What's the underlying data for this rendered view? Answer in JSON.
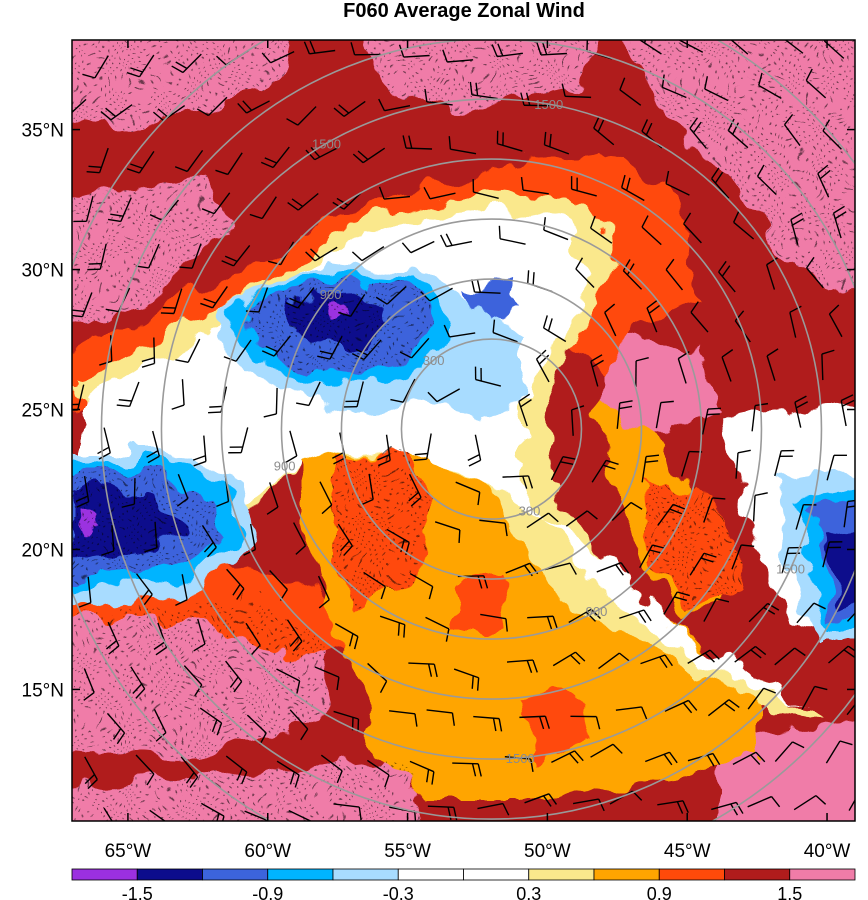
{
  "title": "F060 Average Zonal Wind",
  "map": {
    "lon_range": [
      -67,
      -39
    ],
    "lat_range": [
      10.3,
      38.2
    ],
    "lon_ticks": [
      "65°W",
      "60°W",
      "55°W",
      "50°W",
      "45°W",
      "40°W"
    ],
    "lon_tick_values": [
      -65,
      -60,
      -55,
      -50,
      -45,
      -40
    ],
    "lat_ticks": [
      "35°N",
      "30°N",
      "25°N",
      "20°N",
      "15°N"
    ],
    "lat_tick_values": [
      35,
      30,
      25,
      20,
      15
    ],
    "range_ring_center": [
      -52,
      24.3
    ],
    "range_ring_labels": [
      "300",
      "900",
      "1500"
    ],
    "field_description_colors": {
      "strong_negative": "#8a2be2",
      "negative": "#1e1ea0",
      "weak_negative": "#00b4ff",
      "near_zero": "#ffffff",
      "weak_positive": "#ffa500",
      "positive": "#b01c1c",
      "strong_positive": "#f07ca8"
    }
  },
  "colorbar": {
    "labels": [
      "-1.5",
      "-0.9",
      "-0.3",
      "0.3",
      "0.9",
      "1.5"
    ],
    "colors": [
      "#9b30e0",
      "#0c0c8c",
      "#3c64dc",
      "#00b4ff",
      "#a8dcff",
      "#ffffff",
      "#ffffff",
      "#fae88c",
      "#ffa500",
      "#ff4a0a",
      "#b01c1c",
      "#f07ca8"
    ]
  }
}
